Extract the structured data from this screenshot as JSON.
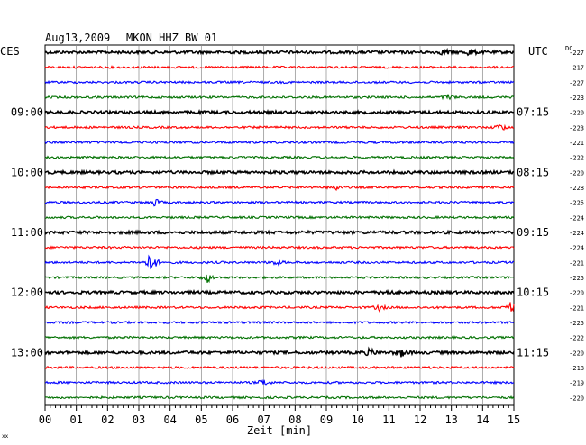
{
  "header": {
    "date": "Aug13,2009",
    "station": "MKON HHZ BW 01",
    "left_zone": "CES",
    "right_zone": "UTC",
    "dc_label": "DC"
  },
  "chart_data": {
    "type": "line",
    "title": "Aug13,2009   MKON HHZ BW 01",
    "xlabel": "Zeit [min]",
    "x_ticks": [
      "00",
      "01",
      "02",
      "03",
      "04",
      "05",
      "06",
      "07",
      "08",
      "09",
      "10",
      "11",
      "12",
      "13",
      "14",
      "15"
    ],
    "xlim": [
      0,
      15
    ],
    "grid": true,
    "left_time_labels": [
      {
        "row": 4,
        "label": "09:00"
      },
      {
        "row": 8,
        "label": "10:00"
      },
      {
        "row": 12,
        "label": "11:00"
      },
      {
        "row": 16,
        "label": "12:00"
      },
      {
        "row": 20,
        "label": "13:00"
      }
    ],
    "right_time_labels": [
      {
        "row": 4,
        "label": "07:15"
      },
      {
        "row": 8,
        "label": "08:15"
      },
      {
        "row": 12,
        "label": "09:15"
      },
      {
        "row": 16,
        "label": "10:15"
      },
      {
        "row": 20,
        "label": "11:15"
      }
    ],
    "trace_colors": [
      "#000000",
      "#ff0000",
      "#0000ff",
      "#007000"
    ],
    "traces": [
      {
        "row": 0,
        "dc": "-227",
        "events": [
          {
            "min": 12.8,
            "amp": 1.6
          },
          {
            "min": 13.6,
            "amp": 1.8
          }
        ]
      },
      {
        "row": 1,
        "dc": "-217",
        "events": []
      },
      {
        "row": 2,
        "dc": "-227",
        "events": []
      },
      {
        "row": 3,
        "dc": "-223",
        "events": [
          {
            "min": 12.9,
            "amp": 1.5
          }
        ]
      },
      {
        "row": 4,
        "dc": "-220",
        "events": []
      },
      {
        "row": 5,
        "dc": "-223",
        "events": [
          {
            "min": 14.6,
            "amp": 2.0
          }
        ]
      },
      {
        "row": 6,
        "dc": "-221",
        "events": []
      },
      {
        "row": 7,
        "dc": "-222",
        "events": []
      },
      {
        "row": 8,
        "dc": "-220",
        "events": []
      },
      {
        "row": 9,
        "dc": "-228",
        "events": [
          {
            "min": 9.3,
            "amp": 1.5
          }
        ]
      },
      {
        "row": 10,
        "dc": "-225",
        "events": [
          {
            "min": 3.5,
            "amp": 2.0
          }
        ]
      },
      {
        "row": 11,
        "dc": "-224",
        "events": []
      },
      {
        "row": 12,
        "dc": "-224",
        "events": []
      },
      {
        "row": 13,
        "dc": "-224",
        "events": []
      },
      {
        "row": 14,
        "dc": "-221",
        "events": [
          {
            "min": 3.4,
            "amp": 6.0
          },
          {
            "min": 7.4,
            "amp": 1.6
          }
        ]
      },
      {
        "row": 15,
        "dc": "-225",
        "events": [
          {
            "min": 5.2,
            "amp": 2.6
          }
        ]
      },
      {
        "row": 16,
        "dc": "-220",
        "events": [
          {
            "min": 10.9,
            "amp": 1.5
          }
        ]
      },
      {
        "row": 17,
        "dc": "-221",
        "events": [
          {
            "min": 10.7,
            "amp": 1.6
          },
          {
            "min": 14.9,
            "amp": 3.0
          }
        ]
      },
      {
        "row": 18,
        "dc": "-225",
        "events": []
      },
      {
        "row": 19,
        "dc": "-222",
        "events": []
      },
      {
        "row": 20,
        "dc": "-220",
        "events": [
          {
            "min": 10.4,
            "amp": 1.8
          },
          {
            "min": 11.4,
            "amp": 2.0
          }
        ]
      },
      {
        "row": 21,
        "dc": "-218",
        "events": []
      },
      {
        "row": 22,
        "dc": "-219",
        "events": [
          {
            "min": 7.0,
            "amp": 1.8
          }
        ]
      },
      {
        "row": 23,
        "dc": "-220",
        "events": []
      }
    ]
  },
  "footer": {
    "mark": "xx"
  }
}
